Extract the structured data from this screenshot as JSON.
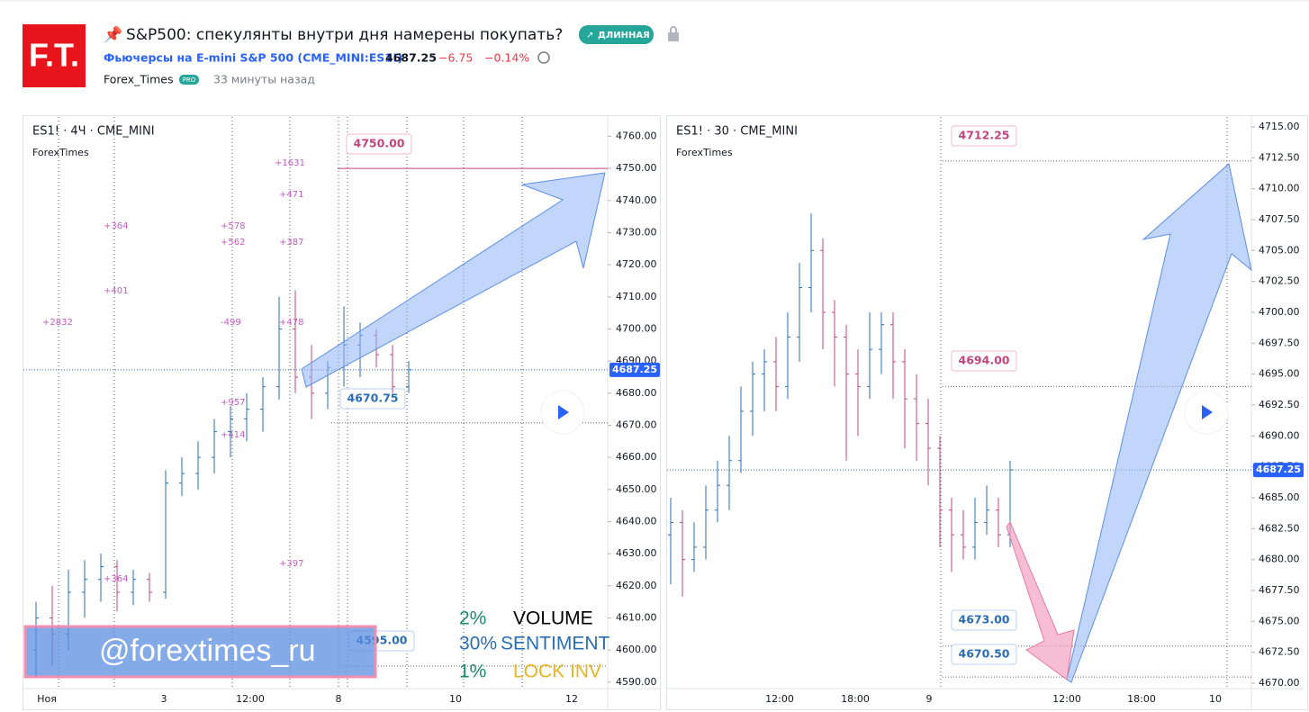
{
  "header": {
    "logo": "F.T.",
    "title": "S&P500: спекулянты внутри дня намерены покупать?",
    "badge": "ДЛИННАЯ",
    "symbol": "Фьючерсы на E-mini S&P 500 (CME_MINI:ES1!)",
    "price": "4687.25",
    "change": "−6.75",
    "change_pct": "−0.14%",
    "author": "Forex_Times",
    "author_badge": "PRO",
    "time": "33 минуты назад"
  },
  "overlay": {
    "banner": "@forextimes_ru",
    "rows": [
      [
        "2%",
        "VOLUME"
      ],
      [
        "30%",
        "SENTIMENT"
      ],
      [
        "1%",
        "LOCK INV"
      ]
    ]
  },
  "charts": [
    {
      "title": "ES1! · 4Ч · CME_MINI",
      "subtitle": "ForexTimes",
      "ylim": [
        4766,
        4588
      ],
      "yticks": [
        {
          "value": 4760,
          "label": "4760.00"
        },
        {
          "value": 4750,
          "label": "4750.00"
        },
        {
          "value": 4740,
          "label": "4740.00"
        },
        {
          "value": 4730,
          "label": "4730.00"
        },
        {
          "value": 4720,
          "label": "4720.00"
        },
        {
          "value": 4710,
          "label": "4710.00"
        },
        {
          "value": 4700,
          "label": "4700.00"
        },
        {
          "value": 4690,
          "label": "4690.00"
        },
        {
          "value": 4680,
          "label": "4680.00"
        },
        {
          "value": 4670,
          "label": "4670.00"
        },
        {
          "value": 4660,
          "label": "4660.00"
        },
        {
          "value": 4650,
          "label": "4650.00"
        },
        {
          "value": 4640,
          "label": "4640.00"
        },
        {
          "value": 4630,
          "label": "4630.00"
        },
        {
          "value": 4620,
          "label": "4620.00"
        },
        {
          "value": 4610,
          "label": "4610.00"
        },
        {
          "value": 4600,
          "label": "4600.00"
        },
        {
          "value": 4590,
          "label": "4590.00"
        }
      ],
      "xticks": [
        "Ноя",
        "3",
        "12:00",
        "8",
        "10",
        "12"
      ],
      "last_price": {
        "value": 4687.25,
        "label": "4687.25"
      },
      "price_labels": [
        {
          "value": 4750,
          "label": "4750.00"
        },
        {
          "value": 4670.75,
          "label": "4670.75"
        },
        {
          "value": 4595,
          "label": "4595.00"
        }
      ],
      "annotations": [
        "+1631",
        "+471",
        "+364",
        "+578",
        "+562",
        "+387",
        "+401",
        "+2832",
        "-499",
        "+478",
        "+957",
        "+414",
        "+397",
        "+364"
      ],
      "candles": [
        [
          4600,
          4615,
          4592,
          4610
        ],
        [
          4610,
          4620,
          4595,
          4605
        ],
        [
          4605,
          4625,
          4600,
          4618
        ],
        [
          4618,
          4628,
          4610,
          4622
        ],
        [
          4622,
          4630,
          4615,
          4626
        ],
        [
          4626,
          4628,
          4612,
          4618
        ],
        [
          4618,
          4625,
          4614,
          4622
        ],
        [
          4622,
          4624,
          4615,
          4618
        ],
        [
          4618,
          4656,
          4616,
          4652
        ],
        [
          4652,
          4660,
          4648,
          4655
        ],
        [
          4655,
          4665,
          4650,
          4660
        ],
        [
          4660,
          4672,
          4655,
          4668
        ],
        [
          4668,
          4676,
          4660,
          4672
        ],
        [
          4672,
          4680,
          4665,
          4675
        ],
        [
          4675,
          4685,
          4668,
          4682
        ],
        [
          4682,
          4710,
          4678,
          4700
        ],
        [
          4700,
          4712,
          4680,
          4685
        ],
        [
          4685,
          4695,
          4672,
          4680
        ],
        [
          4680,
          4690,
          4675,
          4688
        ],
        [
          4688,
          4707,
          4682,
          4695
        ],
        [
          4695,
          4702,
          4685,
          4698
        ],
        [
          4698,
          4700,
          4688,
          4692
        ],
        [
          4692,
          4695,
          4680,
          4682
        ],
        [
          4682,
          4690,
          4680,
          4687.25
        ]
      ]
    },
    {
      "title": "ES1! · 30 · CME_MINI",
      "subtitle": "ForexTimes",
      "ylim": [
        4715.8,
        4669.56
      ],
      "yticks": [
        {
          "value": 4715,
          "label": "4715.00"
        },
        {
          "value": 4712.5,
          "label": "4712.50"
        },
        {
          "value": 4710,
          "label": "4710.00"
        },
        {
          "value": 4707.5,
          "label": "4707.50"
        },
        {
          "value": 4705,
          "label": "4705.00"
        },
        {
          "value": 4702.5,
          "label": "4702.50"
        },
        {
          "value": 4700,
          "label": "4700.00"
        },
        {
          "value": 4697.5,
          "label": "4697.50"
        },
        {
          "value": 4695,
          "label": "4695.00"
        },
        {
          "value": 4692.5,
          "label": "4692.50"
        },
        {
          "value": 4690,
          "label": "4690.00"
        },
        {
          "value": 4687.5,
          "label": "4687.50"
        },
        {
          "value": 4685,
          "label": "4685.00"
        },
        {
          "value": 4682.5,
          "label": "4682.50"
        },
        {
          "value": 4680,
          "label": "4680.00"
        },
        {
          "value": 4677.5,
          "label": "4677.50"
        },
        {
          "value": 4675,
          "label": "4675.00"
        },
        {
          "value": 4672.5,
          "label": "4672.50"
        },
        {
          "value": 4670,
          "label": "4670.00"
        }
      ],
      "xticks": [
        "12:00",
        "18:00",
        "9",
        "12:00",
        "18:00",
        "10"
      ],
      "last_price": {
        "value": 4687.25,
        "label": "4687.25"
      },
      "price_labels": [
        {
          "value": 4712.25,
          "label": "4712.25"
        },
        {
          "value": 4694,
          "label": "4694.00"
        },
        {
          "value": 4673,
          "label": "4673.00"
        },
        {
          "value": 4670.5,
          "label": "4670.50"
        }
      ],
      "annotations": [],
      "candles": [
        [
          4682,
          4685,
          4678,
          4683
        ],
        [
          4683,
          4684,
          4677,
          4680
        ],
        [
          4680,
          4683,
          4679,
          4681
        ],
        [
          4681,
          4686,
          4680,
          4684
        ],
        [
          4684,
          4688,
          4683,
          4686
        ],
        [
          4686,
          4690,
          4684,
          4688
        ],
        [
          4688,
          4694,
          4687,
          4692
        ],
        [
          4692,
          4696,
          4690,
          4695
        ],
        [
          4695,
          4697,
          4692,
          4696
        ],
        [
          4696,
          4698,
          4692,
          4694
        ],
        [
          4694,
          4700,
          4693,
          4698
        ],
        [
          4698,
          4704,
          4696,
          4702
        ],
        [
          4702,
          4708,
          4700,
          4705
        ],
        [
          4705,
          4706,
          4697,
          4700
        ],
        [
          4700,
          4701,
          4694,
          4698
        ],
        [
          4698,
          4699,
          4688,
          4695
        ],
        [
          4695,
          4697,
          4690,
          4694
        ],
        [
          4694,
          4700,
          4693,
          4697
        ],
        [
          4697,
          4700,
          4695,
          4699
        ],
        [
          4699,
          4700,
          4693,
          4696
        ],
        [
          4696,
          4697,
          4689,
          4693
        ],
        [
          4693,
          4695,
          4688,
          4691
        ],
        [
          4691,
          4693,
          4686,
          4689
        ],
        [
          4689,
          4690,
          4681,
          4684
        ],
        [
          4684,
          4685,
          4679,
          4682
        ],
        [
          4682,
          4684,
          4680,
          4681
        ],
        [
          4681,
          4685,
          4680,
          4683
        ],
        [
          4683,
          4686,
          4682,
          4684
        ],
        [
          4684,
          4685,
          4681,
          4682
        ],
        [
          4682,
          4688,
          4681,
          4687.25
        ]
      ]
    }
  ]
}
